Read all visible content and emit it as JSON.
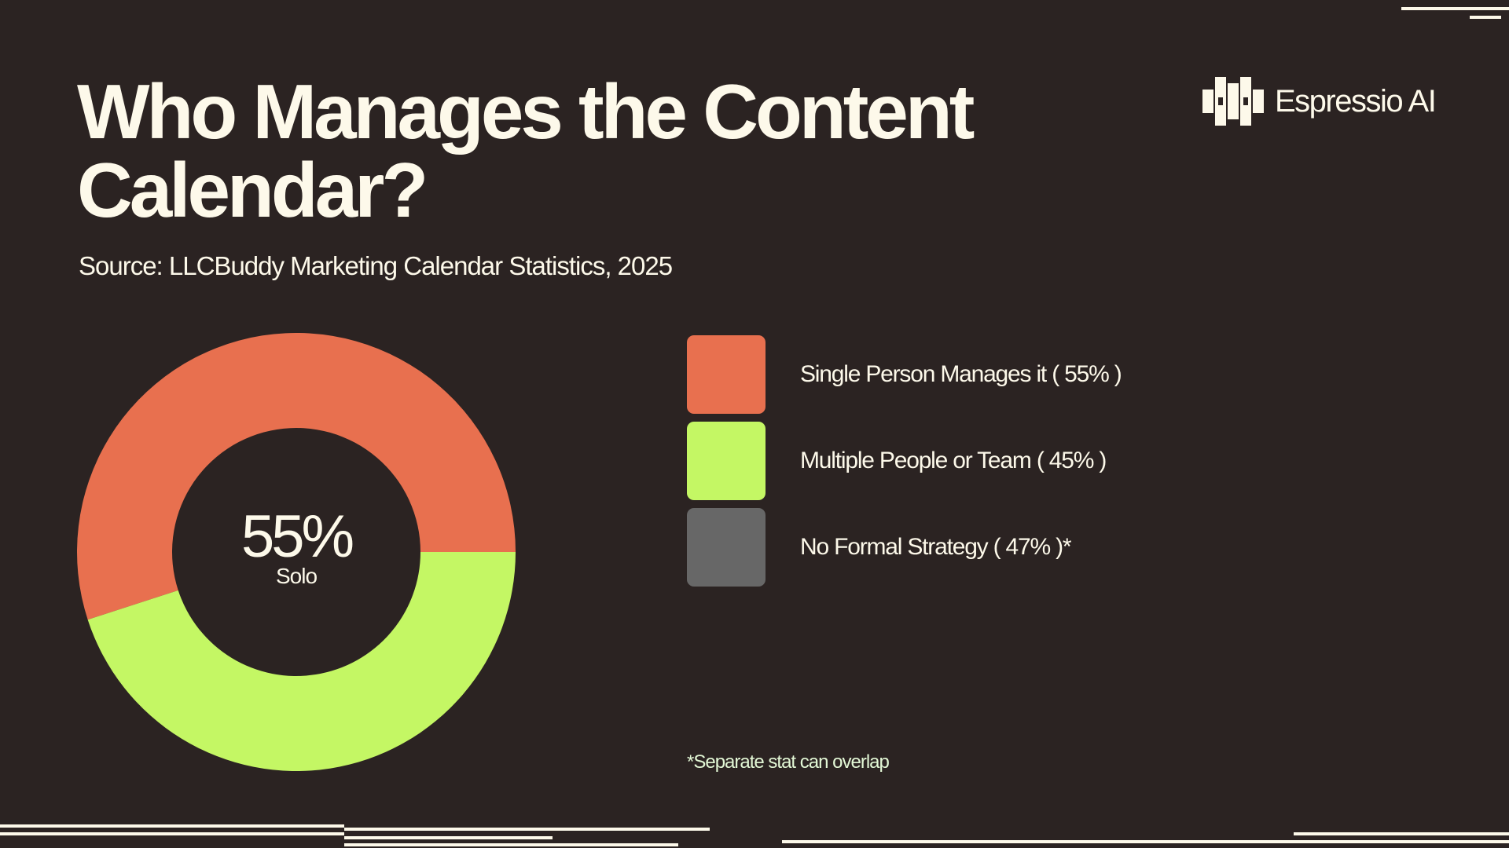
{
  "title": "Who Manages the Content Calendar?",
  "subtitle": "Source: LLCBuddy Marketing Calendar Statistics, 2025",
  "brand": {
    "name": "Espressio AI"
  },
  "colors": {
    "background": "#2b2322",
    "text": "#fdf9ea",
    "single": "#e8704f",
    "team": "#c4f764",
    "no_strategy": "#676767"
  },
  "chart_data": {
    "type": "donut",
    "slices": [
      {
        "label": "Single Person Manages it",
        "value": 55,
        "color": "#e8704f"
      },
      {
        "label": "Multiple People or Team",
        "value": 45,
        "color": "#c4f764"
      }
    ],
    "center_value": "55%",
    "center_label": "Solo",
    "legend": [
      {
        "text": "Single Person Manages it ( 55% )",
        "color": "#e8704f"
      },
      {
        "text": "Multiple People or Team ( 45% )",
        "color": "#c4f764"
      },
      {
        "text": "No Formal Strategy ( 47% )*",
        "color": "#676767"
      }
    ],
    "footnote": "*Separate stat can overlap"
  }
}
